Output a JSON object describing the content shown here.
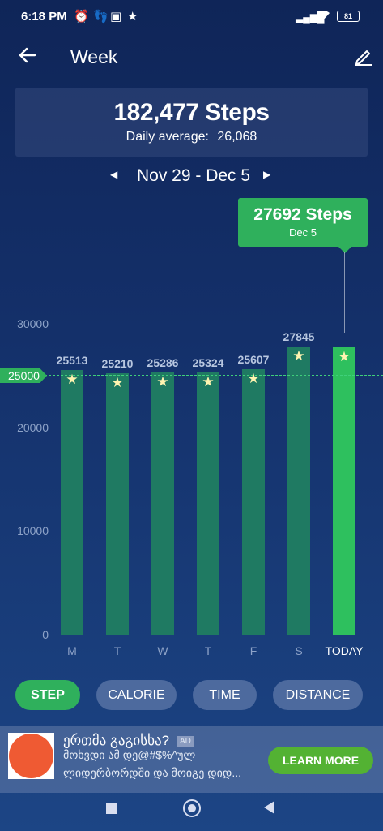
{
  "status_bar": {
    "time": "6:18 PM",
    "battery": "81"
  },
  "header": {
    "title": "Week"
  },
  "summary": {
    "total": "182,477 Steps",
    "average_label": "Daily average:",
    "average_value": "26,068"
  },
  "week_nav": {
    "range": "Nov 29 - Dec 5"
  },
  "tooltip": {
    "value": "27692 Steps",
    "date": "Dec 5"
  },
  "chart_data": {
    "type": "bar",
    "categories": [
      "M",
      "T",
      "W",
      "T",
      "F",
      "S",
      "TODAY"
    ],
    "values": [
      25513,
      25210,
      25286,
      25324,
      25607,
      27845,
      27692
    ],
    "value_labels": [
      "25513",
      "25210",
      "25286",
      "25324",
      "25607",
      "27845",
      ""
    ],
    "ylim": [
      0,
      30000
    ],
    "yticks": [
      "30000",
      "20000",
      "10000",
      "0"
    ],
    "goal": "25000",
    "colors": {
      "bar": "#1f7a62",
      "today_bar": "#2ec05e",
      "goal": "#2fb05c"
    }
  },
  "filters": {
    "items": [
      "STEP",
      "CALORIE",
      "TIME",
      "DISTANCE"
    ],
    "active": "STEP"
  },
  "ad": {
    "title": "ერთმა გაგისხა?",
    "tag": "AD",
    "line1": "მოხვდი ამ დე@#$%^ულ",
    "line2": "ლიდერბორდში და მოიგე დიდ...",
    "button": "LEARN MORE"
  }
}
